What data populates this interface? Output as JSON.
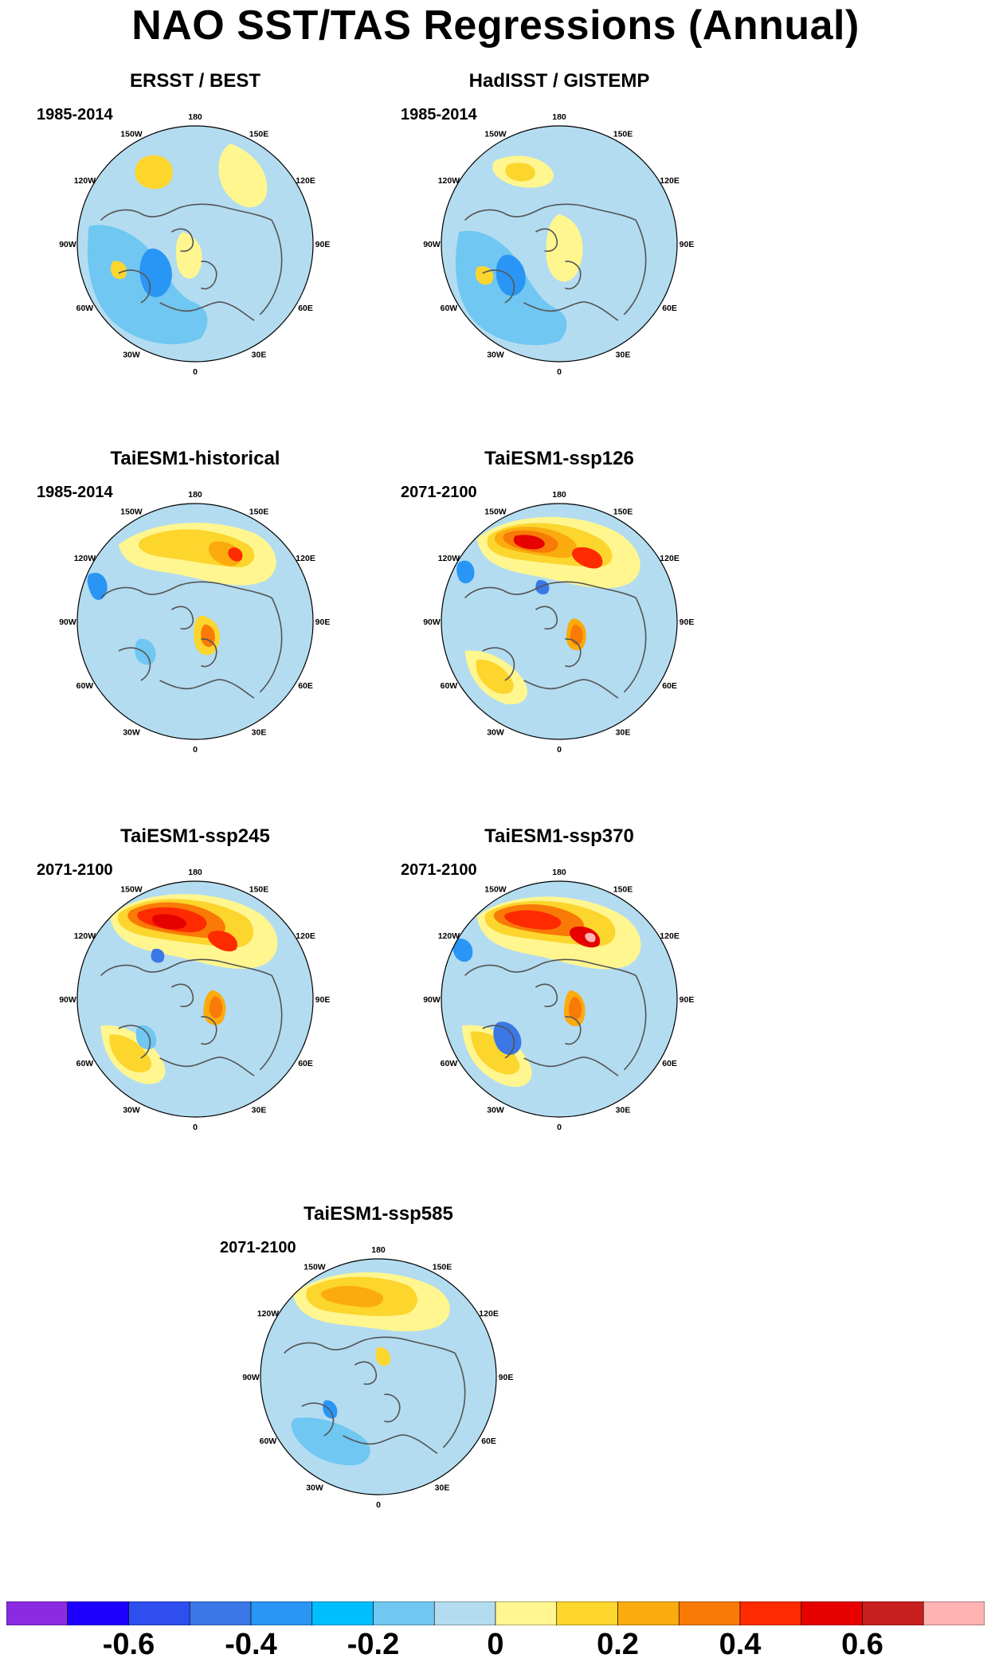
{
  "title": "NAO SST/TAS Regressions (Annual)",
  "lon_labels": [
    "180",
    "150E",
    "120E",
    "90E",
    "60E",
    "30E",
    "0",
    "30W",
    "60W",
    "90W",
    "120W",
    "150W"
  ],
  "panels": [
    {
      "title": "ERSST / BEST",
      "period": "1985-2014",
      "pattern": "obs1"
    },
    {
      "title": "HadISST / GISTEMP",
      "period": "1985-2014",
      "pattern": "obs2"
    },
    {
      "title": "TaiESM1-historical",
      "period": "1985-2014",
      "pattern": "hist"
    },
    {
      "title": "TaiESM1-ssp126",
      "period": "2071-2100",
      "pattern": "ssp126"
    },
    {
      "title": "TaiESM1-ssp245",
      "period": "2071-2100",
      "pattern": "ssp245"
    },
    {
      "title": "TaiESM1-ssp370",
      "period": "2071-2100",
      "pattern": "ssp370"
    },
    {
      "title": "TaiESM1-ssp585",
      "period": "2071-2100",
      "pattern": "ssp585"
    }
  ],
  "colorbar": {
    "colors": [
      "#8a2be2",
      "#1e00ff",
      "#2e4ef0",
      "#3b78e6",
      "#2996f5",
      "#00bfff",
      "#6fc7f2",
      "#b3dcf0",
      "#fff68f",
      "#fcd52d",
      "#fbab0e",
      "#f97a07",
      "#fe2a00",
      "#e60000",
      "#c81e1e",
      "#ffb3b3"
    ],
    "tick_labels": [
      "-0.6",
      "-0.4",
      "-0.2",
      "0",
      "0.2",
      "0.4",
      "0.6"
    ],
    "tick_values": [
      -0.6,
      -0.4,
      -0.2,
      0,
      0.2,
      0.4,
      0.6
    ]
  }
}
